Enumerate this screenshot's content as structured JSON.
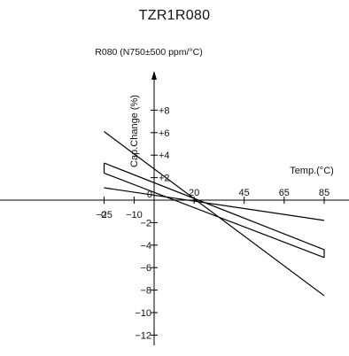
{
  "chart_data": {
    "type": "line",
    "title": "TZR1R080",
    "subtitle": "R080 (N750±500 ppm/°C)",
    "xlabel": "Temp.(°C)",
    "ylabel": "Cap.Change (%)",
    "xlim": [
      -28,
      92
    ],
    "ylim": [
      -13.5,
      10
    ],
    "x_ticks": [
      {
        "value": -25,
        "label": "−25"
      },
      {
        "value": -10,
        "label": "−10"
      },
      {
        "value": 0,
        "label": "0"
      },
      {
        "value": 20,
        "label": "20"
      },
      {
        "value": 45,
        "label": "45"
      },
      {
        "value": 65,
        "label": "65"
      },
      {
        "value": 85,
        "label": "85"
      }
    ],
    "y_ticks": [
      {
        "value": 8,
        "label": "+8"
      },
      {
        "value": 6,
        "label": "+6"
      },
      {
        "value": 4,
        "label": "+4"
      },
      {
        "value": 2,
        "label": "+2"
      },
      {
        "value": 0,
        "label": "0"
      },
      {
        "value": -2,
        "label": "−2"
      },
      {
        "value": -4,
        "label": "−4"
      },
      {
        "value": -6,
        "label": "−6"
      },
      {
        "value": -8,
        "label": "−8"
      },
      {
        "value": -10,
        "label": "−10"
      },
      {
        "value": -12,
        "label": "−12"
      }
    ],
    "series": [
      {
        "x": [
          -25,
          85
        ],
        "y": [
          6.1,
          -8.5
        ]
      },
      {
        "x": [
          -25,
          85
        ],
        "y": [
          3.3,
          -4.4
        ]
      },
      {
        "x": [
          -25,
          85
        ],
        "y": [
          2.4,
          -5.1
        ]
      },
      {
        "x": [
          -25,
          85
        ],
        "y": [
          1.1,
          -1.8
        ]
      }
    ],
    "end_caps": [
      {
        "x": -25,
        "y": [
          3.3,
          2.4
        ]
      },
      {
        "x": 85,
        "y": [
          -4.4,
          -5.1
        ]
      }
    ],
    "grid": false,
    "legend": "none"
  }
}
